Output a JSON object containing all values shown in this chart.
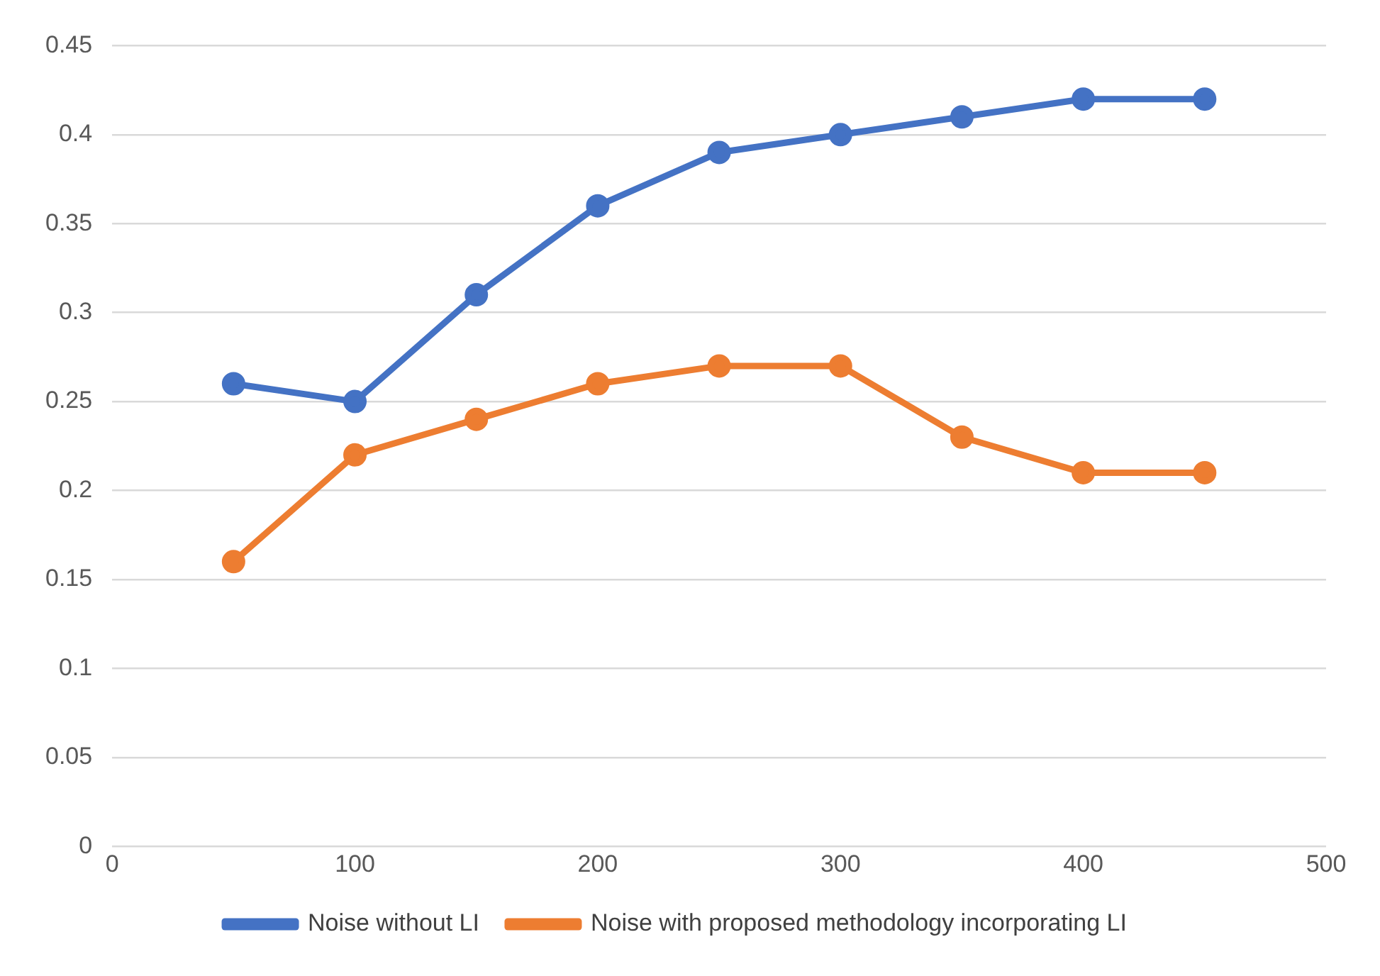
{
  "chart_data": {
    "type": "line",
    "x": [
      50,
      100,
      150,
      200,
      250,
      300,
      350,
      400,
      450
    ],
    "series": [
      {
        "name": "Noise without LI",
        "color": "#4472c4",
        "values": [
          0.26,
          0.25,
          0.31,
          0.36,
          0.39,
          0.4,
          0.41,
          0.42,
          0.42
        ]
      },
      {
        "name": "Noise with proposed methodology incorporating LI",
        "color": "#ed7d31",
        "values": [
          0.16,
          0.22,
          0.24,
          0.26,
          0.27,
          0.27,
          0.23,
          0.21,
          0.21
        ]
      }
    ],
    "xlim": [
      0,
      500
    ],
    "xticks": [
      0,
      100,
      200,
      300,
      400,
      500
    ],
    "ylim": [
      0,
      0.45
    ],
    "yticks": [
      0,
      0.05,
      0.1,
      0.15,
      0.2,
      0.25,
      0.3,
      0.35,
      0.4,
      0.45
    ],
    "grid": "y",
    "legend": "bottom",
    "marker": "circle",
    "line_style": "solid"
  }
}
